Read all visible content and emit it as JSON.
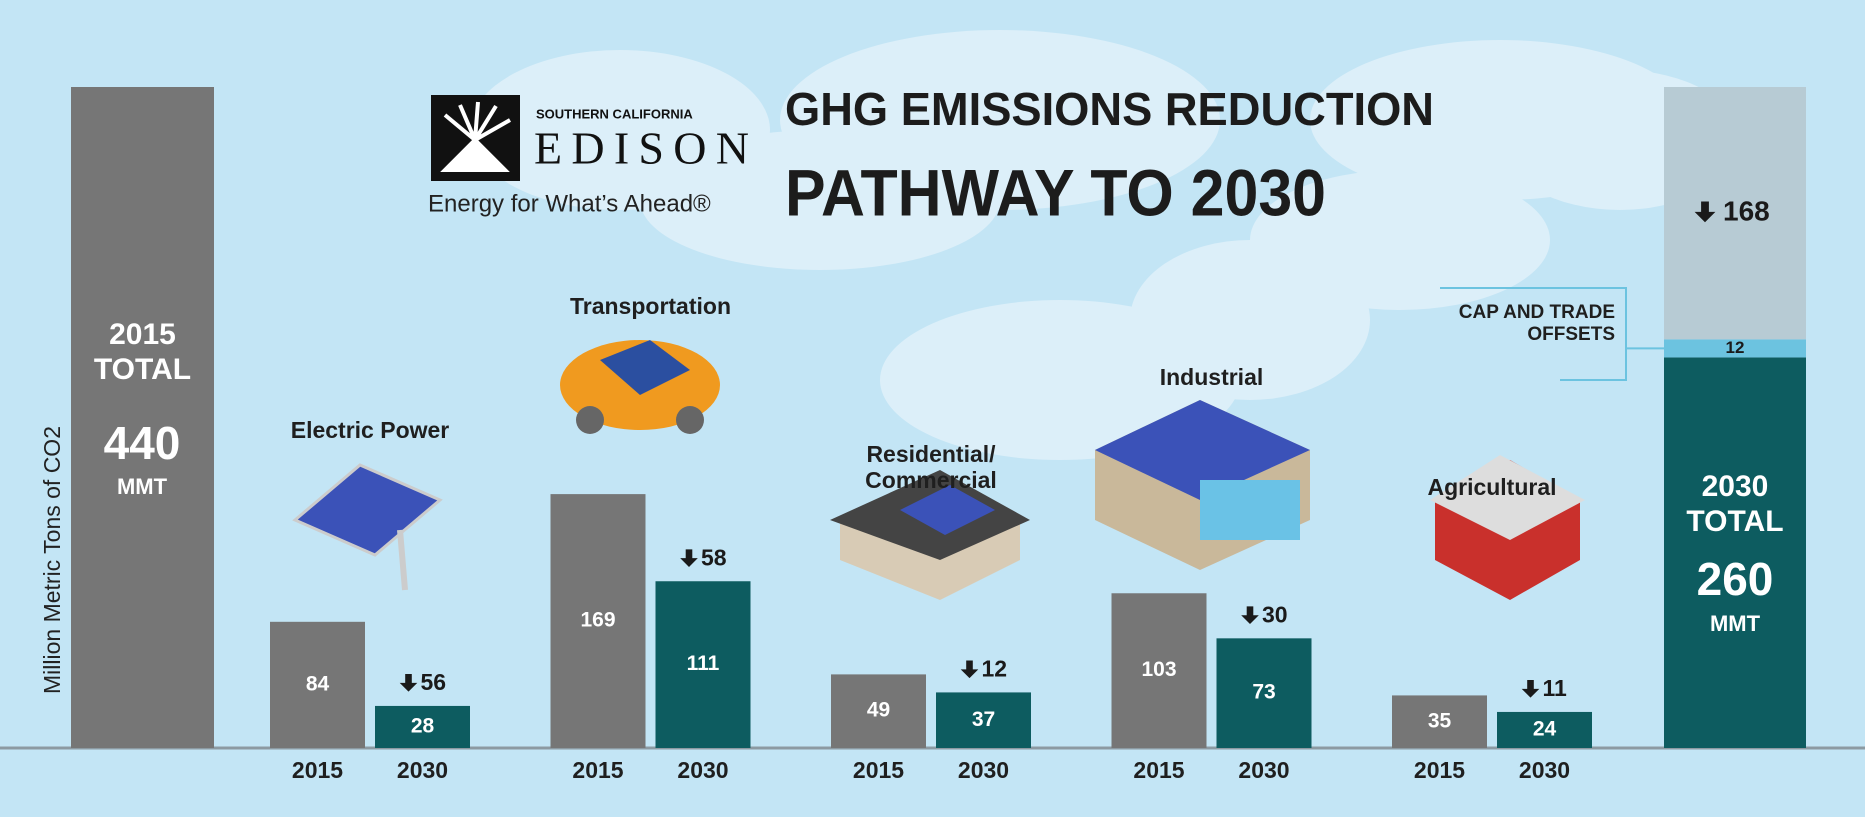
{
  "logo": {
    "region": "SOUTHERN CALIFORNIA",
    "name": "EDISON",
    "slogan": "Energy for What’s Ahead®"
  },
  "chart_data": {
    "type": "bar",
    "title": [
      "GHG EMISSIONS REDUCTION",
      "PATHWAY TO 2030"
    ],
    "y_label": "Million Metric Tons of CO2",
    "categories": [
      "Electric Power",
      "Transportation",
      "Residential/\nCommercial",
      "Industrial",
      "Agricultural"
    ],
    "series": [
      {
        "name": "2015",
        "color": "#767676",
        "values": [
          84,
          169,
          49,
          103,
          35
        ]
      },
      {
        "name": "2030",
        "color": "#0d5c60",
        "values": [
          28,
          111,
          37,
          73,
          24
        ]
      }
    ],
    "reductions": [
      56,
      58,
      12,
      30,
      11
    ],
    "total_2015": {
      "label": "2015\nTOTAL",
      "value": 440,
      "unit": "MMT",
      "color": "#767676"
    },
    "total_2030": {
      "label": "2030\nTOTAL",
      "value": 260,
      "unit": "MMT",
      "color": "#0d5c60",
      "offsets_label": "CAP AND TRADE\nOFFSETS",
      "offsets": 12,
      "offsets_color": "#6cc3e0",
      "reduction": 168,
      "reduction_color": "#b7cbd4"
    }
  }
}
